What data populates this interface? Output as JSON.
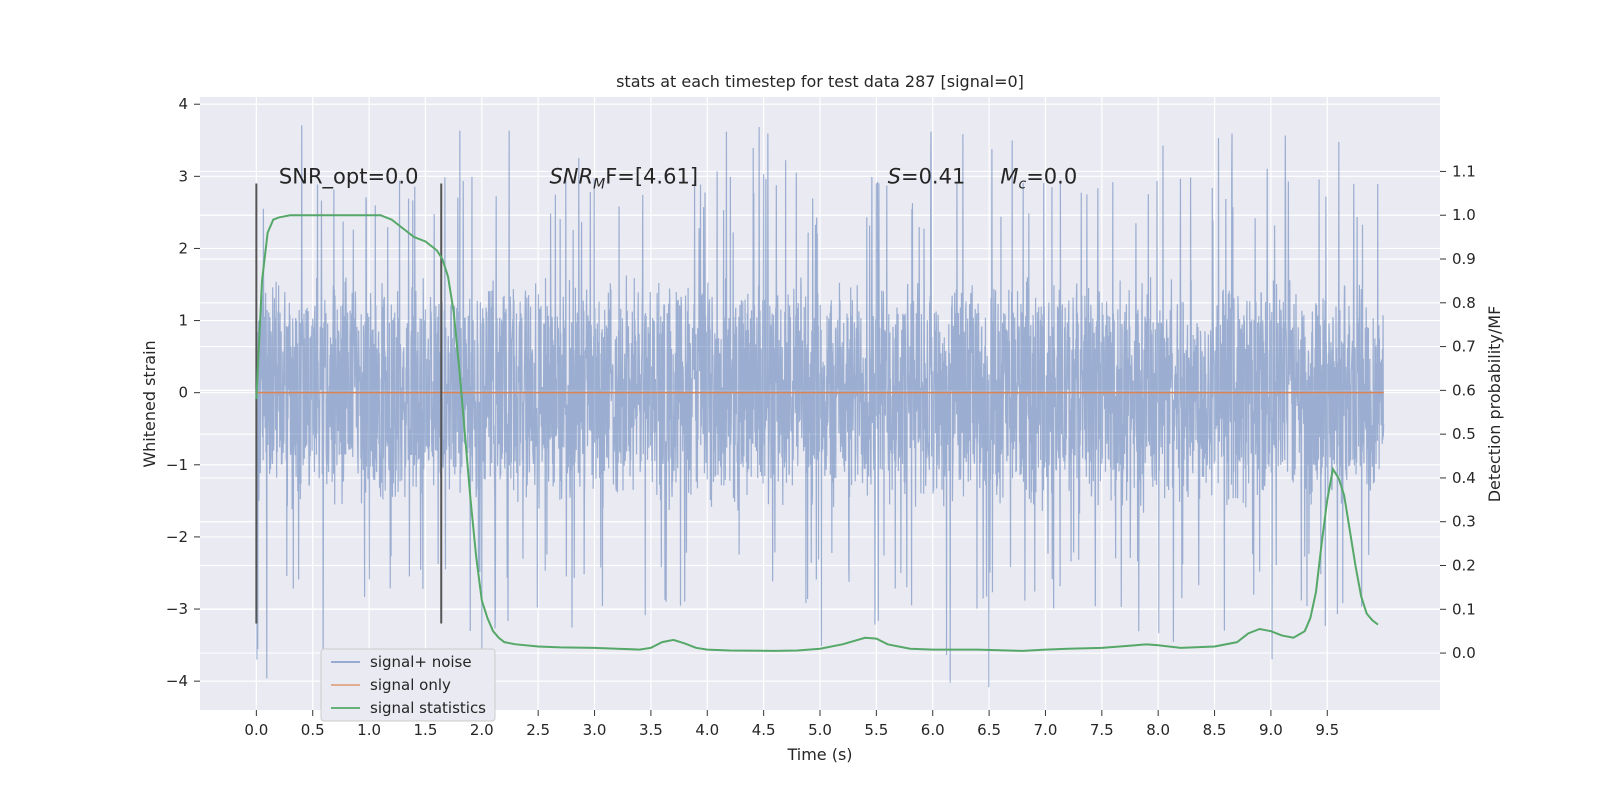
{
  "chart_data": {
    "type": "line",
    "title": "stats at each timestep for test data 287 [signal=0]",
    "xlabel": "Time (s)",
    "ylabel": "Whitened strain",
    "y2label": "Detection probability/MF",
    "xlim": [
      -0.5,
      10.5
    ],
    "ylim": [
      -4.4,
      4.1
    ],
    "y2lim": [
      -0.13,
      1.27
    ],
    "xticks": [
      0.0,
      0.5,
      1.0,
      1.5,
      2.0,
      2.5,
      3.0,
      3.5,
      4.0,
      4.5,
      5.0,
      5.5,
      6.0,
      6.5,
      7.0,
      7.5,
      8.0,
      8.5,
      9.0,
      9.5
    ],
    "yticks": [
      -4,
      -3,
      -2,
      -1,
      0,
      1,
      2,
      3,
      4
    ],
    "y2ticks": [
      0.0,
      0.1,
      0.2,
      0.3,
      0.4,
      0.5,
      0.6,
      0.7,
      0.8,
      0.9,
      1.0,
      1.1
    ],
    "grid": true,
    "legend_position": "lower-left",
    "colors": {
      "background": "#eaeaf2",
      "noise": "#4c72b0",
      "signal": "#dd8452",
      "stats": "#55a868",
      "marker": "#555555"
    },
    "series": [
      {
        "name": "signal+ noise",
        "axis": "left",
        "description_range": [
          0.0,
          10.0
        ],
        "envelope": {
          "core_high": 1.7,
          "core_low": -1.6,
          "max": 3.75,
          "min": -4.1
        }
      },
      {
        "name": "signal only",
        "axis": "left",
        "x": [
          0.0,
          10.0
        ],
        "y": [
          0.0,
          0.0
        ]
      },
      {
        "name": "signal statistics",
        "axis": "right",
        "x": [
          0.0,
          0.05,
          0.1,
          0.15,
          0.2,
          0.3,
          0.5,
          0.7,
          0.9,
          1.0,
          1.1,
          1.2,
          1.3,
          1.4,
          1.5,
          1.6,
          1.65,
          1.7,
          1.75,
          1.8,
          1.85,
          1.9,
          1.95,
          2.0,
          2.05,
          2.1,
          2.15,
          2.2,
          2.3,
          2.5,
          2.7,
          3.0,
          3.2,
          3.4,
          3.5,
          3.6,
          3.7,
          3.8,
          3.9,
          4.0,
          4.2,
          4.6,
          4.8,
          5.0,
          5.2,
          5.4,
          5.5,
          5.6,
          5.8,
          6.0,
          6.4,
          6.8,
          7.0,
          7.2,
          7.5,
          7.8,
          7.9,
          8.0,
          8.2,
          8.5,
          8.7,
          8.8,
          8.9,
          9.0,
          9.1,
          9.2,
          9.3,
          9.35,
          9.4,
          9.45,
          9.5,
          9.55,
          9.6,
          9.65,
          9.7,
          9.75,
          9.8,
          9.85,
          9.9,
          9.95
        ],
        "y": [
          0.58,
          0.85,
          0.96,
          0.99,
          0.995,
          1.0,
          1.0,
          1.0,
          1.0,
          1.0,
          1.0,
          0.99,
          0.97,
          0.95,
          0.94,
          0.92,
          0.9,
          0.86,
          0.78,
          0.65,
          0.5,
          0.35,
          0.22,
          0.12,
          0.08,
          0.05,
          0.035,
          0.025,
          0.02,
          0.015,
          0.013,
          0.012,
          0.01,
          0.008,
          0.012,
          0.025,
          0.03,
          0.022,
          0.012,
          0.008,
          0.006,
          0.005,
          0.006,
          0.01,
          0.02,
          0.035,
          0.033,
          0.02,
          0.01,
          0.008,
          0.008,
          0.005,
          0.008,
          0.01,
          0.012,
          0.018,
          0.02,
          0.018,
          0.012,
          0.015,
          0.025,
          0.045,
          0.055,
          0.05,
          0.04,
          0.035,
          0.05,
          0.08,
          0.14,
          0.25,
          0.35,
          0.42,
          0.4,
          0.36,
          0.28,
          0.2,
          0.13,
          0.09,
          0.075,
          0.065
        ]
      }
    ],
    "markers": [
      {
        "x": 0.0,
        "ymin": -3.2,
        "ymax": 2.9
      },
      {
        "x": 1.64,
        "ymin": -3.2,
        "ymax": 2.9
      }
    ],
    "annotations": [
      {
        "text_plain": "SNR_opt=0.0",
        "x": 0.2,
        "y": 3.0
      },
      {
        "text_main": "SNR",
        "text_sub": "M",
        "text_rest": "F=[4.61]",
        "x": 2.6,
        "y": 3.0
      },
      {
        "text_main": "S",
        "text_rest": "=0.41",
        "x": 5.6,
        "y": 3.0
      },
      {
        "text_main": "M",
        "text_sub": "c",
        "text_rest": "=0.0",
        "x": 6.6,
        "y": 3.0
      }
    ]
  }
}
